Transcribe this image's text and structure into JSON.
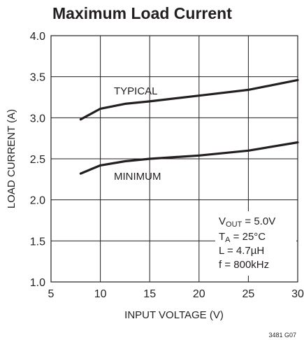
{
  "chart_data": {
    "type": "line",
    "title": "Maximum Load Current",
    "xlabel": "INPUT VOLTAGE (V)",
    "ylabel": "LOAD CURRENT (A)",
    "xlim": [
      5,
      30
    ],
    "ylim": [
      1.0,
      4.0
    ],
    "x_ticks": [
      "5",
      "10",
      "15",
      "20",
      "25",
      "30"
    ],
    "y_ticks": [
      "1.0",
      "1.5",
      "2.0",
      "2.5",
      "3.0",
      "3.5",
      "4.0"
    ],
    "grid": true,
    "series": [
      {
        "name": "TYPICAL",
        "x": [
          8,
          10,
          12.5,
          15,
          20,
          25,
          30
        ],
        "values": [
          2.98,
          3.11,
          3.17,
          3.2,
          3.27,
          3.34,
          3.46
        ]
      },
      {
        "name": "MINIMUM",
        "x": [
          8,
          10,
          12.5,
          15,
          20,
          25,
          30
        ],
        "values": [
          2.32,
          2.42,
          2.47,
          2.5,
          2.54,
          2.6,
          2.7
        ]
      }
    ],
    "conditions": {
      "vout": {
        "base": "V",
        "sub": "OUT",
        "rest": " = 5.0V"
      },
      "ta": {
        "base": "T",
        "sub": "A",
        "rest": " = 25°C"
      },
      "l": "L = 4.7µH",
      "f": "f = 800kHz"
    },
    "figure_id": "3481 G07"
  }
}
